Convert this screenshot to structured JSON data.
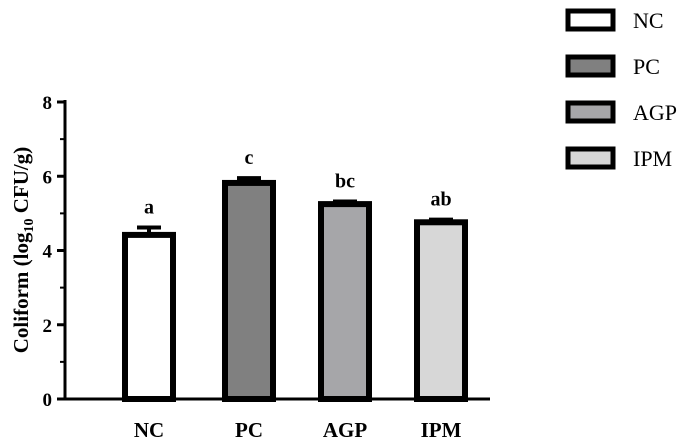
{
  "chart_data": {
    "type": "bar",
    "categories": [
      "NC",
      "PC",
      "AGP",
      "IPM"
    ],
    "values": [
      4.42,
      5.82,
      5.25,
      4.76
    ],
    "errors": [
      0.2,
      0.13,
      0.07,
      0.07
    ],
    "significance": [
      "a",
      "c",
      "bc",
      "ab"
    ],
    "colors": [
      "#ffffff",
      "#808080",
      "#a6a6a9",
      "#d7d7d7"
    ],
    "ylabel": {
      "prefix": "Coliform (log",
      "subscript": "10",
      "suffix": " CFU/g)"
    },
    "ylim": [
      0,
      8
    ],
    "yticks": [
      0,
      2,
      4,
      6,
      8
    ],
    "legend": {
      "position": "top-right",
      "entries": [
        "NC",
        "PC",
        "AGP",
        "IPM"
      ]
    },
    "grid": false
  }
}
